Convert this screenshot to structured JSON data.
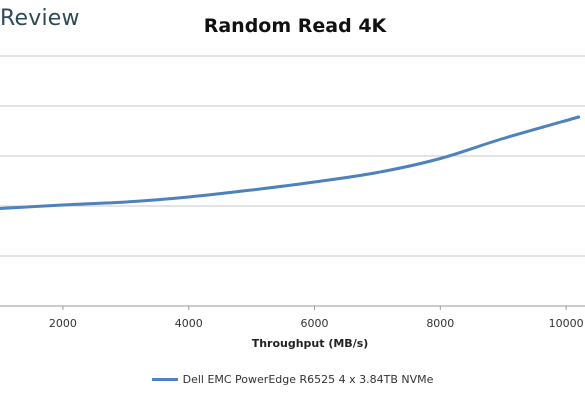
{
  "brand": "Review",
  "chart_data": {
    "type": "line",
    "title": "Random Read 4K",
    "xlabel": "Throughput (MB/s)",
    "ylabel": "",
    "xlim": [
      1000,
      10300
    ],
    "ylim": [
      0,
      5
    ],
    "x_ticks": [
      2000,
      4000,
      6000,
      8000,
      10000
    ],
    "y_ticks": [
      0,
      1,
      2,
      3,
      4,
      5
    ],
    "grid": "horizontal",
    "legend": "bottom",
    "series": [
      {
        "name": "Dell EMC PowerEdge R6525 4 x 3.84TB NVMe",
        "color": "#4f81bd",
        "x": [
          1000,
          2000,
          3000,
          4000,
          5000,
          6000,
          7000,
          8000,
          9000,
          10200
        ],
        "y": [
          1.95,
          2.02,
          2.08,
          2.18,
          2.32,
          2.48,
          2.67,
          2.95,
          3.35,
          3.78
        ]
      }
    ]
  }
}
